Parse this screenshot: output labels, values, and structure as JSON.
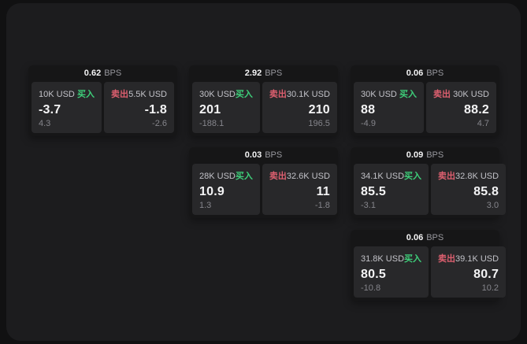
{
  "labels": {
    "bps": "BPS",
    "buy": "买入",
    "sell": "卖出"
  },
  "colors": {
    "outer_bg": "#111112",
    "panel_bg": "#1c1c1e",
    "card_bg": "#161617",
    "subpanel_bg": "#28282a",
    "value_text": "#f4f4f5",
    "label_text": "#c2c2c8",
    "muted_text": "#85858b",
    "unit_text": "#98989e",
    "buy_green": "#3ecf7a",
    "sell_red": "#dd5f6f"
  },
  "cards": [
    {
      "bps": "0.62",
      "buy": {
        "amount": "10K USD",
        "value": "-3.7",
        "sub": "4.3"
      },
      "sell": {
        "amount": "5.5K USD",
        "value": "-1.8",
        "sub": "-2.6"
      }
    },
    {
      "bps": "2.92",
      "buy": {
        "amount": "30K USD",
        "value": "201",
        "sub": "-188.1"
      },
      "sell": {
        "amount": "30.1K USD",
        "value": "210",
        "sub": "196.5"
      }
    },
    {
      "bps": "0.06",
      "buy": {
        "amount": "30K USD",
        "value": "88",
        "sub": "-4.9"
      },
      "sell": {
        "amount": "30K USD",
        "value": "88.2",
        "sub": "4.7"
      }
    },
    {
      "bps": "0.03",
      "buy": {
        "amount": "28K USD",
        "value": "10.9",
        "sub": "1.3"
      },
      "sell": {
        "amount": "32.6K USD",
        "value": "11",
        "sub": "-1.8"
      }
    },
    {
      "bps": "0.09",
      "buy": {
        "amount": "34.1K USD",
        "value": "85.5",
        "sub": "-3.1"
      },
      "sell": {
        "amount": "32.8K USD",
        "value": "85.8",
        "sub": "3.0"
      }
    },
    {
      "bps": "0.06",
      "buy": {
        "amount": "31.8K USD",
        "value": "80.5",
        "sub": "-10.8"
      },
      "sell": {
        "amount": "39.1K USD",
        "value": "80.7",
        "sub": "10.2"
      }
    }
  ]
}
